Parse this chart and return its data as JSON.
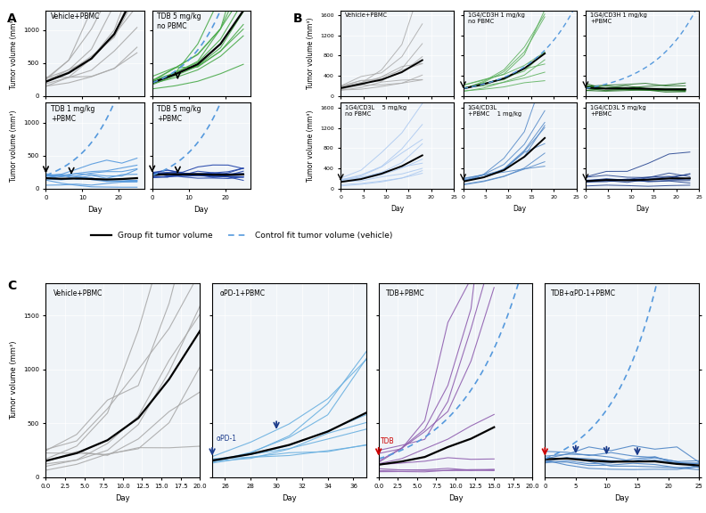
{
  "panel_A_labels": [
    "Vehicle+PBMC",
    "TDB 5 mg/kg\nno PBMC",
    "TDB 1 mg/kg\n+PBMC",
    "TDB 5 mg/kg\n+PBMC"
  ],
  "panel_B_labels": [
    "Vehicle+PBMC",
    "1G4/CD3H 1 mg/kg\nno PBMC",
    "1G4/CD3H 1 mg/kg\n+PBMC",
    "1G4/CD3L    5 mg/kg\nno PBMC",
    "1G4/CD3L\n+PBMC    1 mg/kg",
    "1G4/CD3L 5 mg/kg\n+PBMC"
  ],
  "panel_C_labels": [
    "Vehicle+PBMC",
    "αPD-1+PBMC",
    "TDB+PBMC",
    "TDB+αPD-1+PBMC"
  ],
  "colors_A": [
    "#aaaaaa",
    "#4aaa4a",
    "#5599dd",
    "#2244aa"
  ],
  "colors_B": [
    "#aaaaaa",
    "#5ab05a",
    "#1a6b1a",
    "#aac8f0",
    "#4f86c6",
    "#1a3a8a"
  ],
  "colors_C": [
    "#aaaaaa",
    "#6ab0e0",
    "#9060b0",
    "#4f86c6"
  ],
  "bg_color": "#f0f4f8",
  "black": "#000000",
  "dashed_blue": "#5599dd",
  "red": "#cc0000",
  "dark_blue": "#1a3a8a",
  "ylabel": "Tumor volume (mm³)",
  "xlabel": "Day",
  "legend_line1": "Group fit tumor volume",
  "legend_line2": "Control fit tumor volume (vehicle)"
}
